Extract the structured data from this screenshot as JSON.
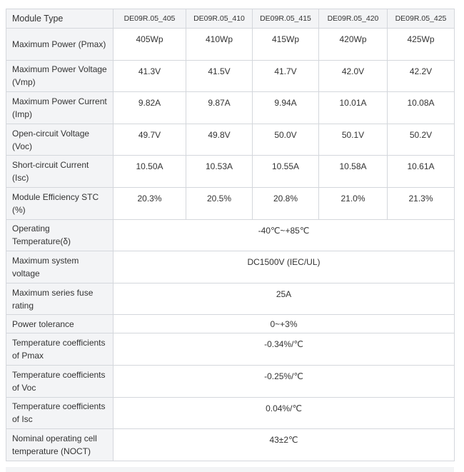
{
  "table": {
    "header": {
      "label": "Module Type",
      "models": [
        "DE09R.05_405",
        "DE09R.05_410",
        "DE09R.05_415",
        "DE09R.05_420",
        "DE09R.05_425"
      ]
    },
    "per_model_rows": [
      {
        "label": "Maximum Power (Pmax)",
        "values": [
          "405Wp",
          "410Wp",
          "415Wp",
          "420Wp",
          "425Wp"
        ]
      },
      {
        "label": "Maximum Power Voltage (Vmp)",
        "values": [
          "41.3V",
          "41.5V",
          "41.7V",
          "42.0V",
          "42.2V"
        ]
      },
      {
        "label": "Maximum Power Current (Imp)",
        "values": [
          "9.82A",
          "9.87A",
          "9.94A",
          "10.01A",
          "10.08A"
        ]
      },
      {
        "label": "Open-circuit Voltage (Voc)",
        "values": [
          "49.7V",
          "49.8V",
          "50.0V",
          "50.1V",
          "50.2V"
        ]
      },
      {
        "label": "Short-circuit Current (Isc)",
        "values": [
          "10.50A",
          "10.53A",
          "10.55A",
          "10.58A",
          "10.61A"
        ]
      },
      {
        "label": "Module Efficiency STC (%)",
        "values": [
          "20.3%",
          "20.5%",
          "20.8%",
          "21.0%",
          "21.3%"
        ]
      }
    ],
    "shared_rows": [
      {
        "label": "Operating Temperature(δ)",
        "value": "-40℃~+85℃"
      },
      {
        "label": "Maximum system voltage",
        "value": "DC1500V (IEC/UL)"
      },
      {
        "label": "Maximum series fuse rating",
        "value": "25A"
      },
      {
        "label": "Power tolerance",
        "value": "0~+3%"
      },
      {
        "label": "Temperature coefficients of Pmax",
        "value": "-0.34%/℃"
      },
      {
        "label": "Temperature coefficients of Voc",
        "value": "-0.25%/℃"
      },
      {
        "label": "Temperature coefficients of Isc",
        "value": "0.04%/℃"
      },
      {
        "label": "Nominal operating cell temperature (NOCT)",
        "value": "43±2℃"
      }
    ]
  }
}
